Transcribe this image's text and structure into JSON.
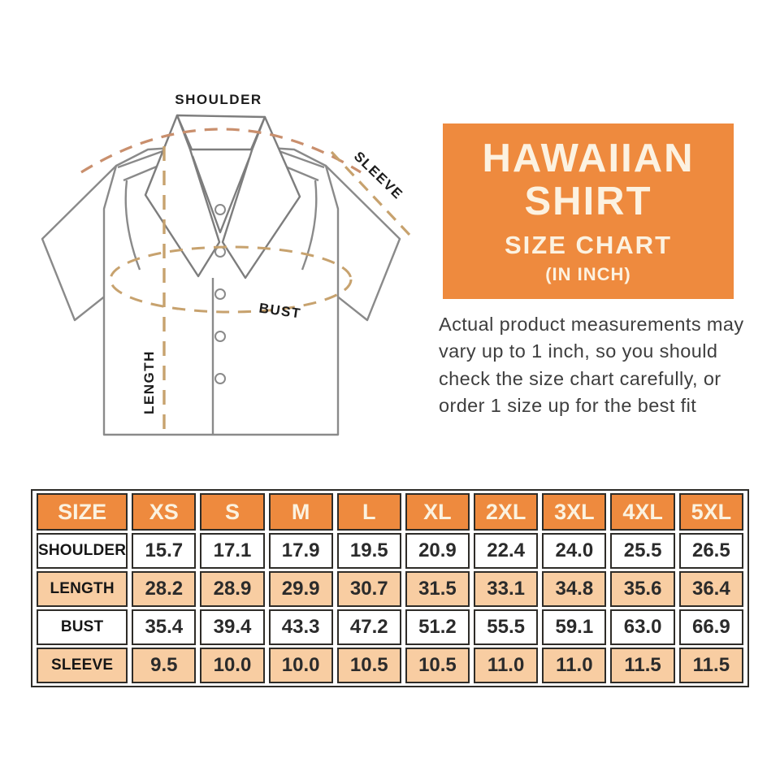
{
  "figure": {
    "labels": {
      "shoulder": "SHOULDER",
      "sleeve": "SLEEVE",
      "bust": "BUST",
      "length": "LENGTH"
    }
  },
  "banner": {
    "title_line1": "HAWAIIAN",
    "title_line2": "SHIRT",
    "subtitle": "SIZE CHART",
    "unit": "(IN INCH)"
  },
  "note": "Actual product measurements may vary up to 1 inch, so you should check the size chart carefully, or order 1 size up for the best fit",
  "colors": {
    "accent_orange": "#EE8A3E",
    "peach_row": "#F8CDA2",
    "table_border": "#2E2C28",
    "dash_tan": "#C7A26E",
    "dash_salmon": "#C98F6D",
    "shirt_outline": "#8A8A8A",
    "banner_text": "#FCF2E1"
  },
  "chart_data": {
    "type": "table",
    "title": "HAWAIIAN SHIRT SIZE CHART (IN INCH)",
    "columns": [
      "SIZE",
      "XS",
      "S",
      "M",
      "L",
      "XL",
      "2XL",
      "3XL",
      "4XL",
      "5XL"
    ],
    "rows": [
      {
        "label": "SHOULDER",
        "values": [
          15.7,
          17.1,
          17.9,
          19.5,
          20.9,
          22.4,
          24.0,
          25.5,
          26.5
        ]
      },
      {
        "label": "LENGTH",
        "values": [
          28.2,
          28.9,
          29.9,
          30.7,
          31.5,
          33.1,
          34.8,
          35.6,
          36.4
        ]
      },
      {
        "label": "BUST",
        "values": [
          35.4,
          39.4,
          43.3,
          47.2,
          51.2,
          55.5,
          59.1,
          63.0,
          66.9
        ]
      },
      {
        "label": "SLEEVE",
        "values": [
          9.5,
          10.0,
          10.0,
          10.5,
          10.5,
          11.0,
          11.0,
          11.5,
          11.5
        ]
      }
    ]
  }
}
